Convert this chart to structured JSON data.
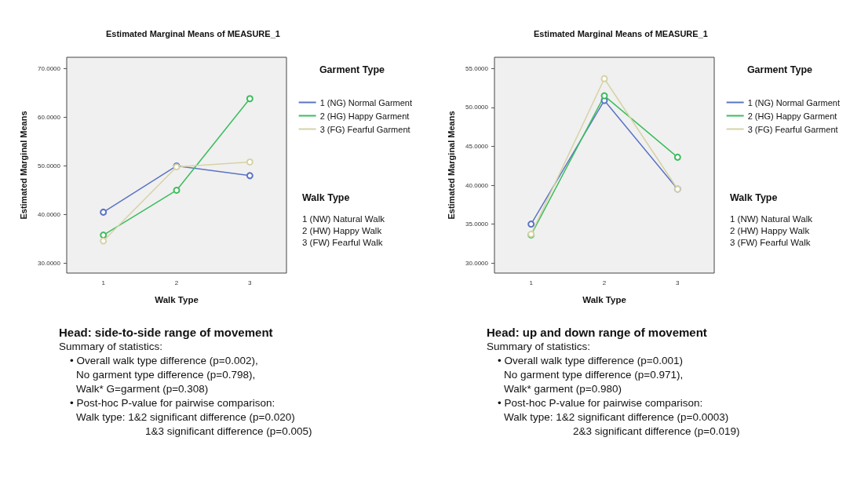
{
  "chart_data": [
    {
      "type": "line",
      "title": "Estimated Marginal Means of MEASURE_1",
      "subtitle": "Head: side-to-side range of movement",
      "xlabel": "Walk Type",
      "ylabel": "Estimated Marginal Means",
      "legend_title": "Garment Type",
      "categories": [
        "1",
        "2",
        "3"
      ],
      "series": [
        {
          "name": "1 (NG) Normal Garment",
          "color": "#5b74c4",
          "values": [
            40.5,
            50.0,
            48.0
          ]
        },
        {
          "name": "2 (HG) Happy Garment",
          "color": "#3cbd5c",
          "values": [
            35.8,
            45.0,
            63.8
          ]
        },
        {
          "name": "3 (FG) Fearful Garment",
          "color": "#d6d2a6",
          "values": [
            34.6,
            49.8,
            50.8
          ]
        }
      ],
      "ylim": [
        28,
        72.3
      ],
      "yticks": [
        {
          "value": 30,
          "label": "30.0000"
        },
        {
          "value": 40,
          "label": "40.0000"
        },
        {
          "value": 50,
          "label": "50.0000"
        },
        {
          "value": 60,
          "label": "60.0000"
        },
        {
          "value": 70,
          "label": "70.0000"
        }
      ],
      "grid": false,
      "legend": "right",
      "marker": "circle",
      "line_style": "solid",
      "annotations": [
        "Walk Type",
        "1 (NW) Natural Walk",
        "2 (HW) Happy Walk",
        "3 (FW) Fearful Walk",
        "Summary of statistics:",
        "• Overall walk type difference (p=0.002),",
        "No garment type difference (p=0.798),",
        "Walk* G=garment (p=0.308)",
        "• Post-hoc P-value for pairwise comparison:",
        "Walk type: 1&2 significant difference (p=0.020)",
        "1&3 significant difference (p=0.005)"
      ]
    },
    {
      "type": "line",
      "title": "Estimated Marginal Means of MEASURE_1",
      "subtitle": "Head: up and down range of movement",
      "xlabel": "Walk Type",
      "ylabel": "Estimated Marginal Means",
      "legend_title": "Garment Type",
      "categories": [
        "1",
        "2",
        "3"
      ],
      "series": [
        {
          "name": "1 (NG) Normal Garment",
          "color": "#5b74c4",
          "values": [
            35.0,
            50.9,
            39.5
          ]
        },
        {
          "name": "2 (HG) Happy Garment",
          "color": "#3cbd5c",
          "values": [
            33.6,
            51.5,
            43.6
          ]
        },
        {
          "name": "3 (FG) Fearful Garment",
          "color": "#d6d2a6",
          "values": [
            33.7,
            53.7,
            39.5
          ]
        }
      ],
      "ylim": [
        28.7,
        56.45
      ],
      "yticks": [
        {
          "value": 30,
          "label": "30.0000"
        },
        {
          "value": 35,
          "label": "35.0000"
        },
        {
          "value": 40,
          "label": "40.0000"
        },
        {
          "value": 45,
          "label": "45.0000"
        },
        {
          "value": 50,
          "label": "50.0000"
        },
        {
          "value": 55,
          "label": "55.0000"
        }
      ],
      "grid": false,
      "legend": "right",
      "marker": "circle",
      "line_style": "solid",
      "annotations": [
        "Walk Type",
        "1 (NW) Natural Walk",
        "2 (HW) Happy Walk",
        "3 (FW) Fearful Walk",
        "Summary of statistics:",
        "• Overall walk type difference (p=0.001)",
        "No garment type difference (p=0.971),",
        "Walk* garment (p=0.980)",
        "• Post-hoc P-value for pairwise comparison:",
        "Walk type: 1&2 significant difference (p=0.0003)",
        "2&3 significant difference (p=0.019)"
      ]
    }
  ]
}
